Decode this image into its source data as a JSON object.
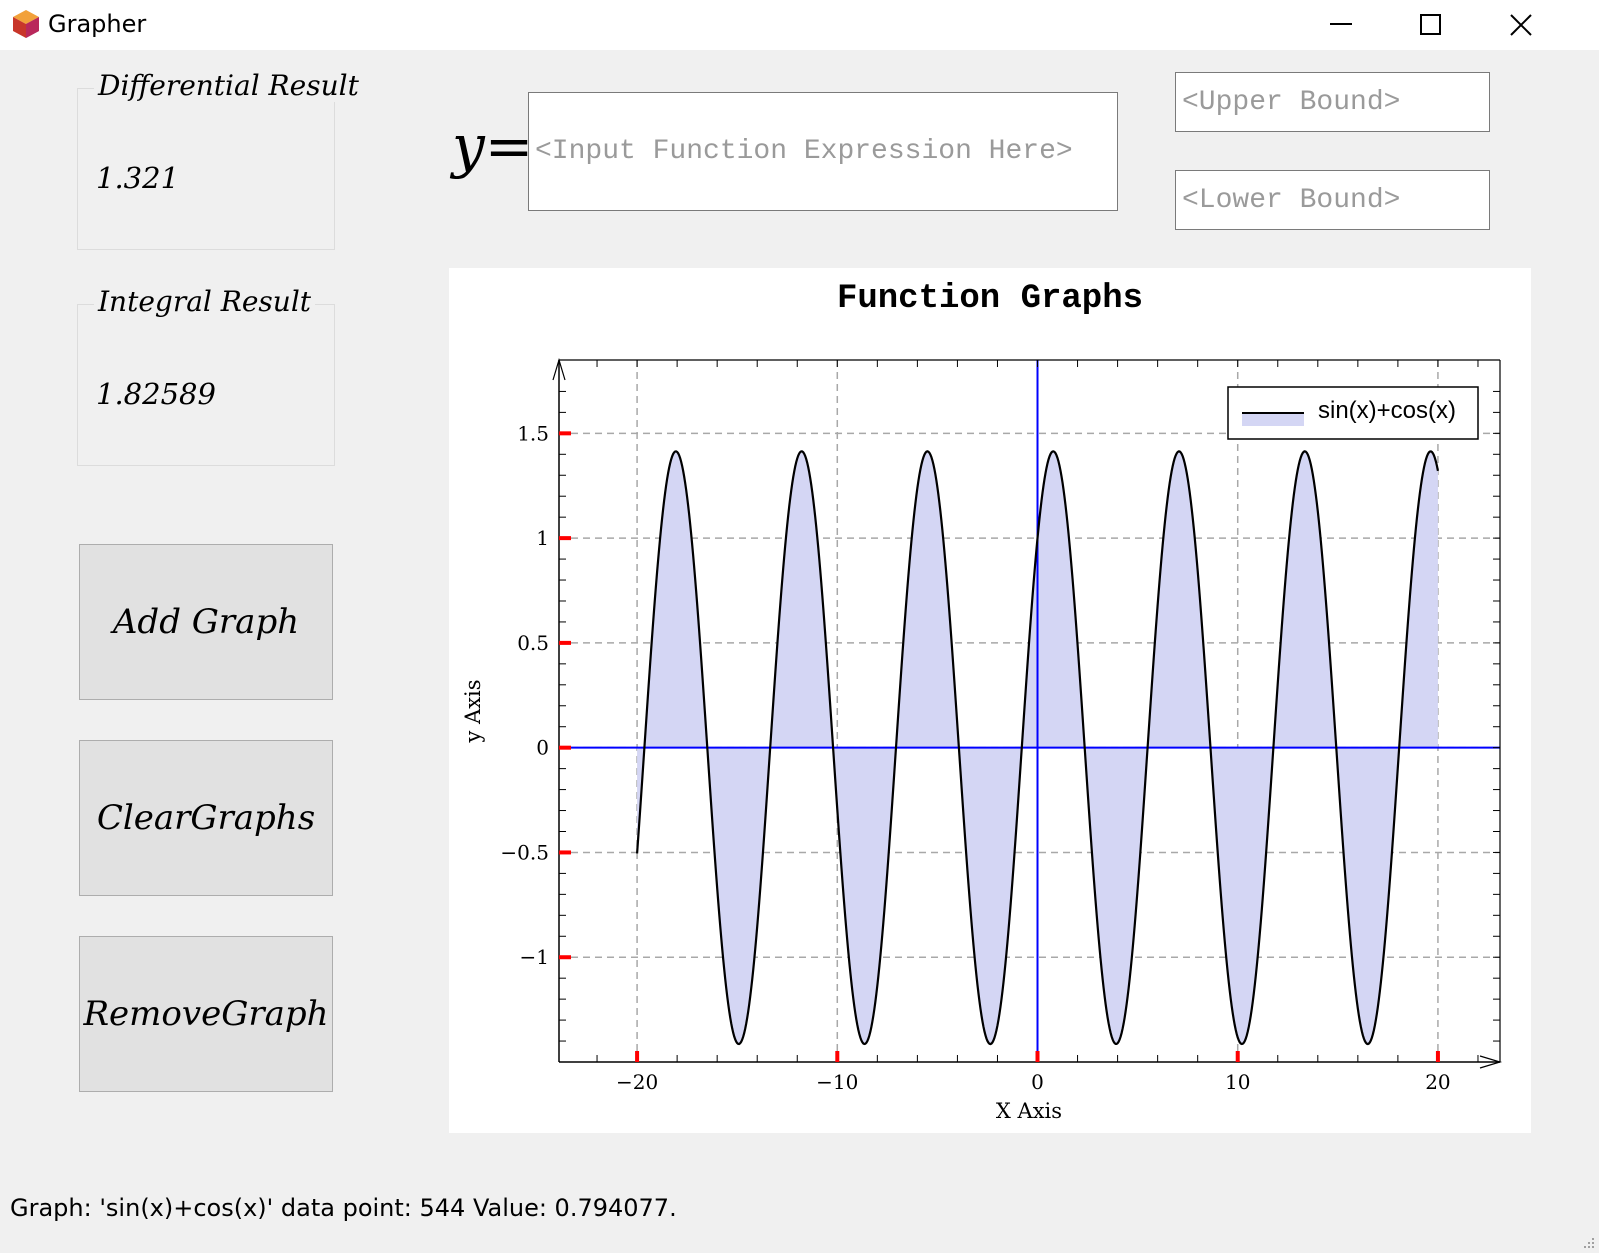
{
  "window": {
    "title": "Grapher",
    "icon": "cube-app-icon",
    "controls": [
      "minimize-icon",
      "maximize-icon",
      "close-icon"
    ]
  },
  "differential": {
    "title": "Differential Result",
    "value": "1.321"
  },
  "integral": {
    "title": "Integral Result",
    "value": "1.82589"
  },
  "buttons": {
    "add": "Add Graph",
    "clear": "ClearGraphs",
    "remove": "RemoveGraph"
  },
  "inputs": {
    "y_prefix": "y=",
    "function_placeholder": "<Input Function Expression Here>",
    "upper_placeholder": "<Upper Bound>",
    "lower_placeholder": "<Lower Bound>"
  },
  "status": "Graph: 'sin(x)+cos(x)' data point: 544 Value: 0.794077.",
  "chart_data": {
    "type": "area",
    "title": "Function Graphs",
    "xlabel": "X Axis",
    "ylabel": "y Axis",
    "xlim": [
      -23.9,
      23.1
    ],
    "ylim": [
      -1.5,
      1.85
    ],
    "x_ticks": [
      -20,
      -10,
      0,
      10,
      20
    ],
    "y_ticks": [
      1.5,
      1,
      0.5,
      0,
      -0.5,
      -1
    ],
    "x_tick_labels": [
      "−20",
      "−10",
      "0",
      "10",
      "20"
    ],
    "y_tick_labels": [
      "1.5",
      "1",
      "0.5",
      "0",
      "−0.5",
      "−1"
    ],
    "grid": true,
    "legend_position": "top-right",
    "series": [
      {
        "name": "sin(x)+cos(x)",
        "expression": "sin(x)+cos(x)",
        "x_range": [
          -20,
          20
        ],
        "line_color": "#000000",
        "fill_color": "#d4d6f4"
      }
    ],
    "axis_line_color": "#0000ff",
    "tick_mark_color": "#ff0000"
  }
}
